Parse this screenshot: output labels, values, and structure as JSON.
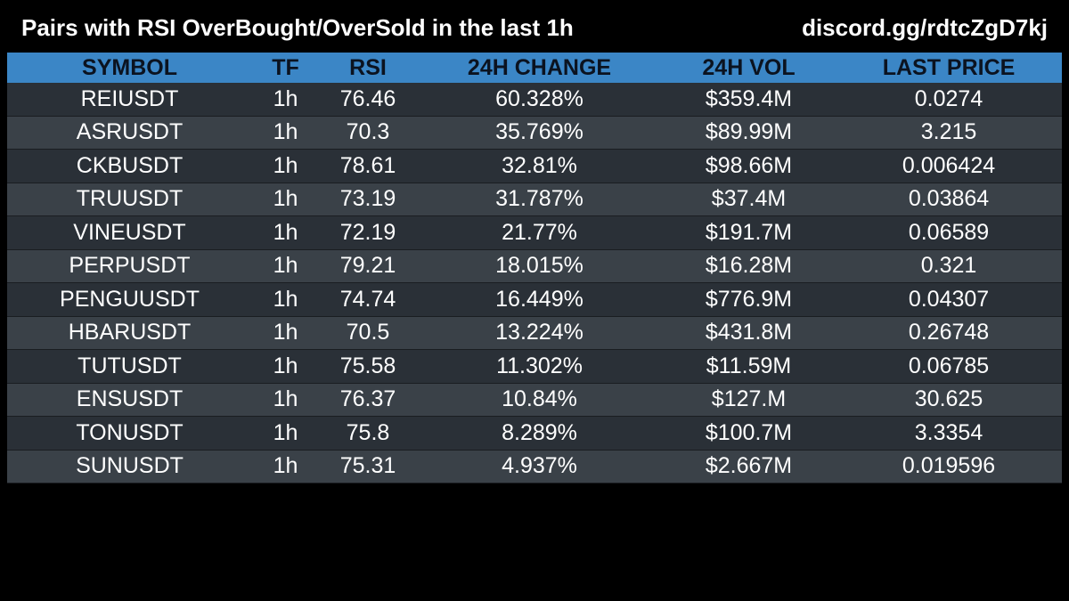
{
  "header": {
    "title": "Pairs with RSI OverBought/OverSold in the last 1h",
    "link": "discord.gg/rdtcZgD7kj"
  },
  "table": {
    "columns": [
      "SYMBOL",
      "TF",
      "RSI",
      "24H CHANGE",
      "24H VOL",
      "LAST PRICE"
    ],
    "rows": [
      [
        "REIUSDT",
        "1h",
        "76.46",
        "60.328%",
        "$359.4M",
        "0.0274"
      ],
      [
        "ASRUSDT",
        "1h",
        "70.3",
        "35.769%",
        "$89.99M",
        "3.215"
      ],
      [
        "CKBUSDT",
        "1h",
        "78.61",
        "32.81%",
        "$98.66M",
        "0.006424"
      ],
      [
        "TRUUSDT",
        "1h",
        "73.19",
        "31.787%",
        "$37.4M",
        "0.03864"
      ],
      [
        "VINEUSDT",
        "1h",
        "72.19",
        "21.77%",
        "$191.7M",
        "0.06589"
      ],
      [
        "PERPUSDT",
        "1h",
        "79.21",
        "18.015%",
        "$16.28M",
        "0.321"
      ],
      [
        "PENGUUSDT",
        "1h",
        "74.74",
        "16.449%",
        "$776.9M",
        "0.04307"
      ],
      [
        "HBARUSDT",
        "1h",
        "70.5",
        "13.224%",
        "$431.8M",
        "0.26748"
      ],
      [
        "TUTUSDT",
        "1h",
        "75.58",
        "11.302%",
        "$11.59M",
        "0.06785"
      ],
      [
        "ENSUSDT",
        "1h",
        "76.37",
        "10.84%",
        "$127.M",
        "30.625"
      ],
      [
        "TONUSDT",
        "1h",
        "75.8",
        "8.289%",
        "$100.7M",
        "3.3354"
      ],
      [
        "SUNUSDT",
        "1h",
        "75.31",
        "4.937%",
        "$2.667M",
        "0.019596"
      ]
    ]
  },
  "colors": {
    "background": "#000000",
    "header_row": "#3b86c6",
    "row_odd": "#2a3037",
    "row_even": "#3a4148"
  }
}
